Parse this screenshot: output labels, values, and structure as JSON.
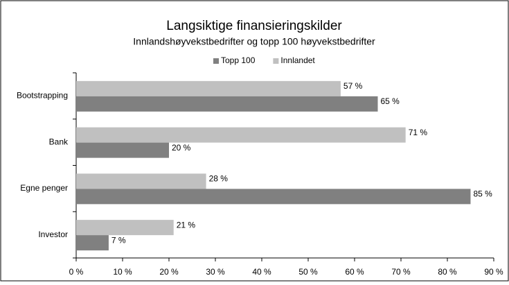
{
  "chart_data": {
    "type": "bar",
    "orientation": "horizontal",
    "title": "Langsiktige finansieringskilder",
    "subtitle": "Innlandshøyvekstbedrifter og topp 100 høyvekstbedrifter",
    "categories": [
      "Bootstrapping",
      "Bank",
      "Egne penger",
      "Investor"
    ],
    "series": [
      {
        "name": "Topp 100",
        "color": "#808080",
        "values": [
          65,
          20,
          85,
          7
        ],
        "value_labels": [
          "65 %",
          "20 %",
          "85 %",
          "7 %"
        ]
      },
      {
        "name": "Innlandet",
        "color": "#c0c0c0",
        "values": [
          57,
          71,
          28,
          21
        ],
        "value_labels": [
          "57 %",
          "71 %",
          "28 %",
          "21 %"
        ]
      }
    ],
    "xlim": [
      0,
      90
    ],
    "xticks": [
      {
        "value": 0,
        "label": "0 %"
      },
      {
        "value": 10,
        "label": "10 %"
      },
      {
        "value": 20,
        "label": "20 %"
      },
      {
        "value": 30,
        "label": "30 %"
      },
      {
        "value": 40,
        "label": "40 %"
      },
      {
        "value": 50,
        "label": "50 %"
      },
      {
        "value": 60,
        "label": "60 %"
      },
      {
        "value": 70,
        "label": "70 %"
      },
      {
        "value": 80,
        "label": "80 %"
      },
      {
        "value": 90,
        "label": "90 %"
      }
    ],
    "legend": "top",
    "grid": false
  }
}
